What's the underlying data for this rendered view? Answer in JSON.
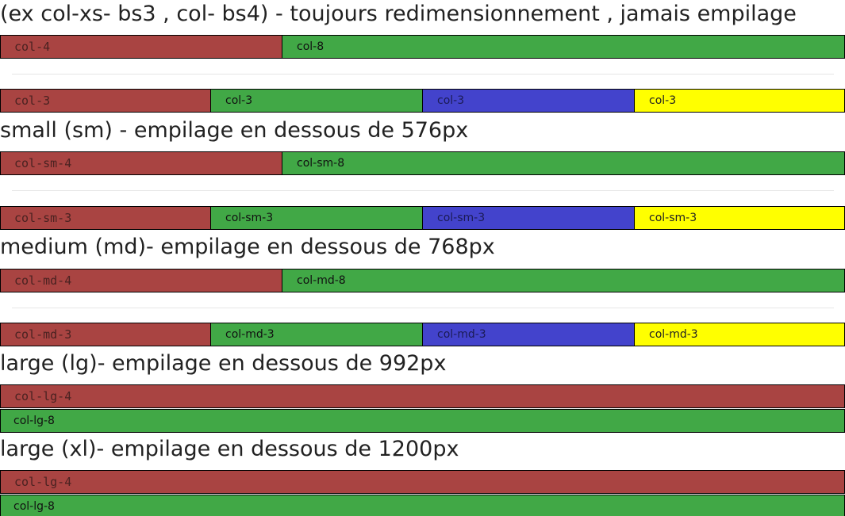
{
  "sections": [
    {
      "title": "(ex col-xs- bs3 , col- bs4) - toujours redimensionnement , jamais empilage",
      "row1": [
        "col-4",
        "col-8"
      ],
      "row2": [
        "col-3",
        "col-3",
        "col-3",
        "col-3"
      ]
    },
    {
      "title": "small (sm) - empilage en dessous de 576px",
      "row1": [
        "col-sm-4",
        "col-sm-8"
      ],
      "row2": [
        "col-sm-3",
        "col-sm-3",
        "col-sm-3",
        "col-sm-3"
      ]
    },
    {
      "title": "medium (md)- empilage en dessous de 768px",
      "row1": [
        "col-md-4",
        "col-md-8"
      ],
      "row2": [
        "col-md-3",
        "col-md-3",
        "col-md-3",
        "col-md-3"
      ]
    },
    {
      "title": "large (lg)- empilage en dessous de 992px",
      "stacked": [
        "col-lg-4",
        "col-lg-8"
      ]
    },
    {
      "title": "large (xl)- empilage en dessous de 1200px",
      "stacked": [
        "col-lg-4",
        "col-lg-8"
      ]
    }
  ],
  "colors": {
    "red": "#a94442",
    "green": "#41a846",
    "blue": "#4343cc",
    "yellow": "#ffff00"
  }
}
